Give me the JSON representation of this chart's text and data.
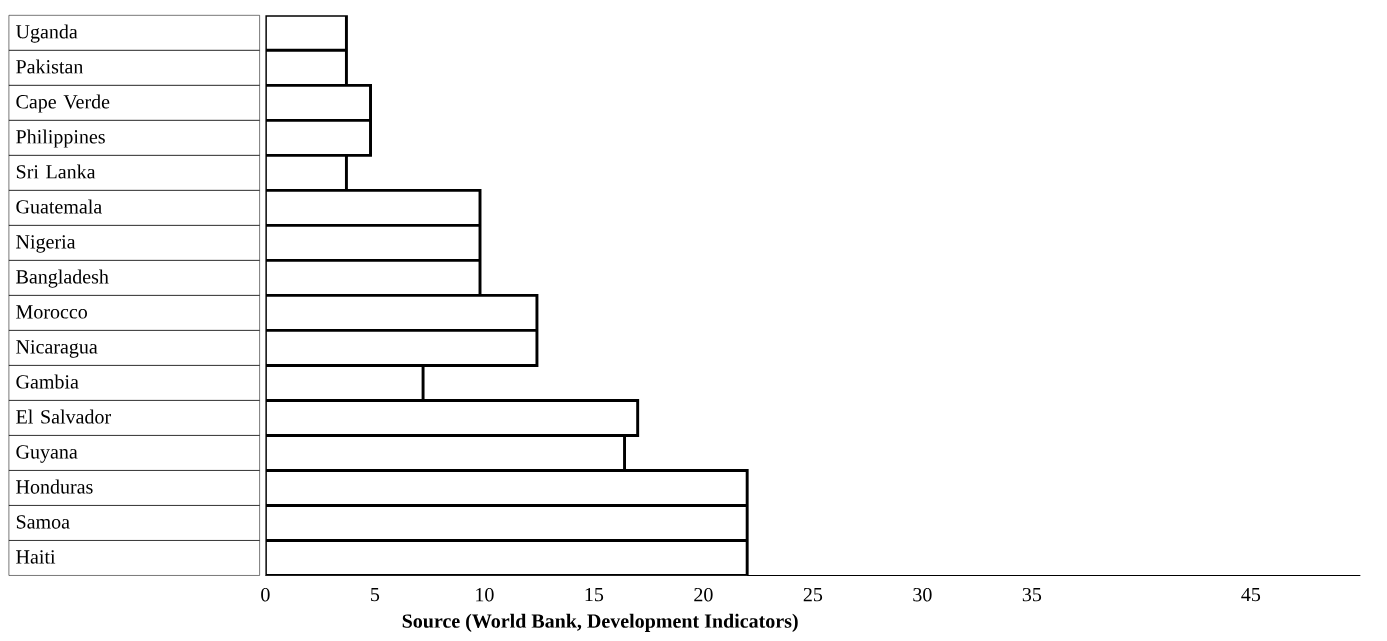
{
  "chart_data": {
    "type": "bar",
    "orientation": "horizontal",
    "categories": [
      "Uganda",
      "Pakistan",
      "Cape Verde",
      "Philippines",
      "Sri Lanka",
      "Guatemala",
      "Nigeria",
      "Bangladesh",
      "Morocco",
      "Nicaragua",
      "Gambia",
      "El Salvador",
      "Guyana",
      "Honduras",
      "Samoa",
      "Haiti"
    ],
    "values": [
      3.7,
      3.7,
      4.8,
      4.8,
      3.7,
      9.8,
      9.8,
      9.8,
      12.4,
      12.4,
      7.2,
      17,
      16.4,
      22,
      22,
      22
    ],
    "color": "#ffffff",
    "xlim": [
      0,
      50
    ],
    "xticks": [
      0,
      5,
      10,
      15,
      20,
      25,
      30,
      35,
      45
    ],
    "grid": false,
    "annotations": [
      "Source (World Bank, Development Indicators)"
    ]
  }
}
